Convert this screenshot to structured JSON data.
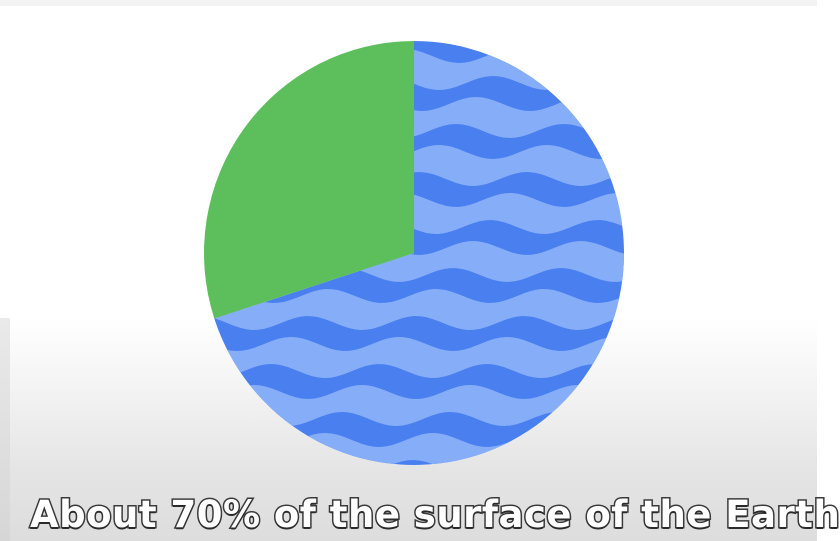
{
  "caption": "About 70% of the surface of the Earth",
  "colors": {
    "water_dark": "#4a7ff0",
    "water_light": "#86aef8",
    "land": "#5cbf5c",
    "caption_fill": "#ffffff",
    "caption_stroke": "#3a3a3a"
  },
  "chart_data": {
    "type": "pie",
    "categories": [
      "water",
      "land"
    ],
    "values": [
      70,
      30
    ],
    "units": "percent",
    "start_angle_deg": 0,
    "direction": "clockwise-from-top",
    "pattern": "wavy stripes on water slice"
  }
}
